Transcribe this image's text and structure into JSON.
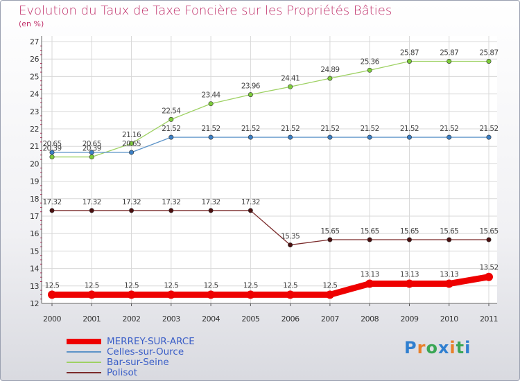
{
  "chart_data": {
    "type": "line",
    "title": "Evolution du Taux de Taxe Foncière sur les Propriétés Bâties",
    "ylabel": "(en %)",
    "xlabel": "",
    "x": [
      "2000",
      "2001",
      "2002",
      "2003",
      "2004",
      "2005",
      "2006",
      "2007",
      "2008",
      "2009",
      "2010",
      "2011"
    ],
    "ylim": [
      12,
      27
    ],
    "yticks": [
      "12",
      "13",
      "14",
      "15",
      "16",
      "17",
      "18",
      "19",
      "20",
      "21",
      "22",
      "23",
      "24",
      "25",
      "26",
      "27"
    ],
    "grid": true,
    "series": [
      {
        "name": "MERREY-SUR-ARCE",
        "color": "#ee0000",
        "values": [
          12.5,
          12.5,
          12.5,
          12.5,
          12.5,
          12.5,
          12.5,
          12.5,
          13.13,
          13.13,
          13.13,
          13.52
        ],
        "labels": [
          "12.5",
          "12.5",
          "12.5",
          "12.5",
          "12.5",
          "12.5",
          "12.5",
          "12.5",
          "13.13",
          "13.13",
          "13.13",
          "13.52"
        ]
      },
      {
        "name": "Celles-sur-Ource",
        "color": "#5c93c8",
        "values": [
          20.65,
          20.65,
          20.65,
          21.52,
          21.52,
          21.52,
          21.52,
          21.52,
          21.52,
          21.52,
          21.52,
          21.52
        ],
        "labels": [
          "20.65",
          "20.65",
          "20.65",
          "21.52",
          "21.52",
          "21.52",
          "21.52",
          "21.52",
          "21.52",
          "21.52",
          "21.52",
          "21.52"
        ]
      },
      {
        "name": "Bar-sur-Seine",
        "color": "#9ed163",
        "values": [
          20.39,
          20.39,
          21.16,
          22.54,
          23.44,
          23.96,
          24.41,
          24.89,
          25.36,
          25.87,
          25.87,
          25.87
        ],
        "labels": [
          "20.39",
          "20.39",
          "21.16",
          "22.54",
          "23.44",
          "23.96",
          "24.41",
          "24.89",
          "25.36",
          "25.87",
          "25.87",
          "25.87"
        ]
      },
      {
        "name": "Polisot",
        "color": "#7a2a2a",
        "values": [
          17.32,
          17.32,
          17.32,
          17.32,
          17.32,
          17.32,
          15.35,
          15.65,
          15.65,
          15.65,
          15.65,
          15.65
        ],
        "labels": [
          "17.32",
          "17.32",
          "17.32",
          "17.32",
          "17.32",
          "17.32",
          "15.35",
          "15.65",
          "15.65",
          "15.65",
          "15.65",
          "15.65"
        ]
      }
    ],
    "legend_position": "bottom-left"
  },
  "logo": {
    "letters": [
      "P",
      "r",
      "o",
      "x",
      "i",
      "t",
      "i"
    ],
    "colors": [
      "#2f7fd0",
      "#e8802a",
      "#3aa655",
      "#2f7fd0",
      "#e8802a",
      "#3aa655",
      "#2f7fd0"
    ]
  }
}
